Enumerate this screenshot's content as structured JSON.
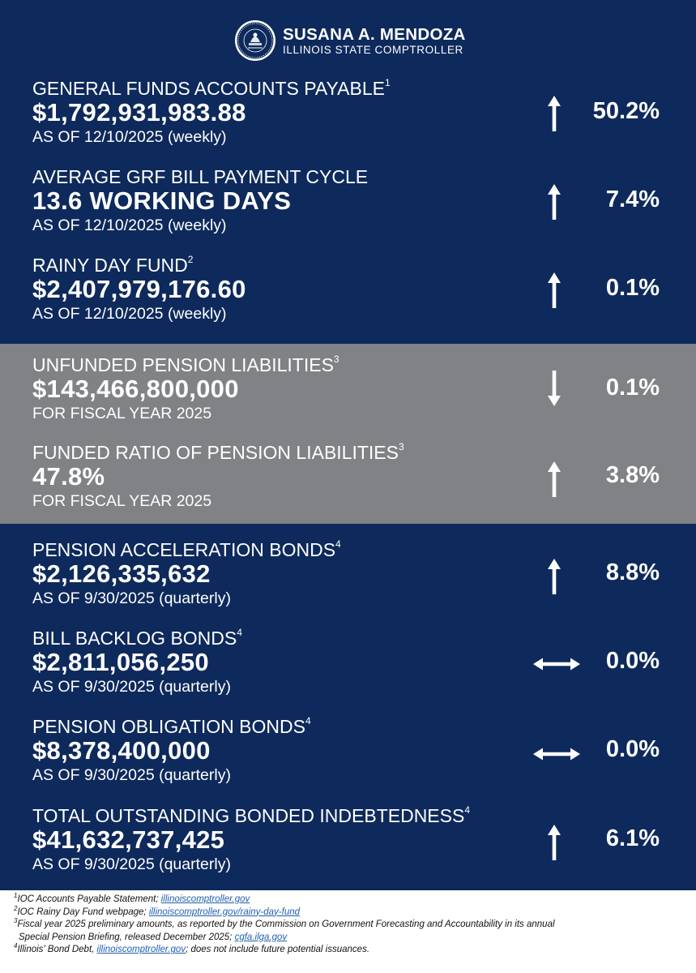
{
  "header": {
    "name": "SUSANA A. MENDOZA",
    "title": "ILLINOIS STATE COMPTROLLER"
  },
  "colors": {
    "navy": "#0e2a5c",
    "gray": "#808285",
    "link": "#1f5fae"
  },
  "stats": [
    {
      "label": "GENERAL FUNDS ACCOUNTS PAYABLE",
      "note": "1",
      "value": "$1,792,931,983.88",
      "asof": "AS OF 12/10/2025 (weekly)",
      "direction": "up-arrow-icon",
      "change": "50.2%"
    },
    {
      "label": "AVERAGE GRF BILL PAYMENT CYCLE",
      "note": "",
      "value": "13.6 WORKING DAYS",
      "asof": "AS OF 12/10/2025 (weekly)",
      "direction": "up-arrow-icon",
      "change": "7.4%"
    },
    {
      "label": "RAINY DAY FUND",
      "note": "2",
      "value": "$2,407,979,176.60",
      "asof": "AS OF 12/10/2025 (weekly)",
      "direction": "up-arrow-icon",
      "change": "0.1%"
    },
    {
      "label": "UNFUNDED PENSION LIABILITIES",
      "note": "3",
      "value": "$143,466,800,000",
      "asof": "FOR FISCAL YEAR 2025",
      "direction": "down-arrow-icon",
      "change": "0.1%"
    },
    {
      "label": "FUNDED RATIO OF PENSION LIABILITIES",
      "note": "3",
      "value": "47.8%",
      "asof": "FOR FISCAL YEAR 2025",
      "direction": "up-arrow-icon",
      "change": "3.8%"
    },
    {
      "label": "PENSION ACCELERATION BONDS",
      "note": "4",
      "value": "$2,126,335,632",
      "asof": "AS OF 9/30/2025 (quarterly)",
      "direction": "up-arrow-icon",
      "change": "8.8%"
    },
    {
      "label": "BILL BACKLOG BONDS",
      "note": "4",
      "value": "$2,811,056,250",
      "asof": "AS OF 9/30/2025 (quarterly)",
      "direction": "double-arrow-icon",
      "change": "0.0%"
    },
    {
      "label": "PENSION OBLIGATION BONDS",
      "note": "4",
      "value": "$8,378,400,000",
      "asof": "AS OF 9/30/2025 (quarterly)",
      "direction": "double-arrow-icon",
      "change": "0.0%"
    },
    {
      "label": "TOTAL OUTSTANDING BONDED INDEBTEDNESS",
      "note": "4",
      "value": "$41,632,737,425",
      "asof": "AS OF 9/30/2025 (quarterly)",
      "direction": "up-arrow-icon",
      "change": "6.1%"
    }
  ],
  "footnotes": {
    "f1": {
      "num": "1",
      "text": "IOC Accounts Payable Statement; ",
      "link": "illinoiscomptroller.gov"
    },
    "f2": {
      "num": "2",
      "text": "IOC Rainy Day Fund webpage; ",
      "link": "illinoiscomptroller.gov/rainy-day-fund"
    },
    "f3": {
      "num": "3",
      "text": "Fiscal year 2025 preliminary amounts, as reported by the Commission on Government Forecasting and Accountability in its annual",
      "text2": "Special Pension Briefing, released December 2025; ",
      "link": "cgfa.ilga.gov"
    },
    "f4": {
      "num": "4",
      "text": "Illinois' Bond Debt, ",
      "link": "illinoiscomptroller.gov",
      "text2": "; does not include future potential issuances."
    }
  }
}
